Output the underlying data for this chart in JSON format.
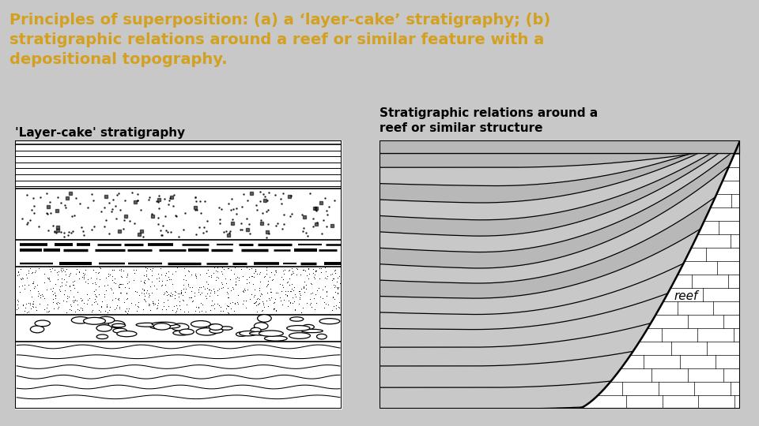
{
  "title_text": "Principles of superposition: (a) a ‘layer-cake’ stratigraphy; (b)\nstratigraphic relations around a reef or similar feature with a\ndepositional topography.",
  "title_bg": "#1c1c1c",
  "title_color": "#d4a020",
  "title_fontsize": 14,
  "body_bg": "#c8c8c8",
  "label_a": "'Layer-cake' stratigraphy",
  "label_b": "Stratigraphic relations around a\nreef or similar structure",
  "label_fontsize": 11,
  "reef_label": "reef",
  "gray_shading": "#b8b8b8"
}
